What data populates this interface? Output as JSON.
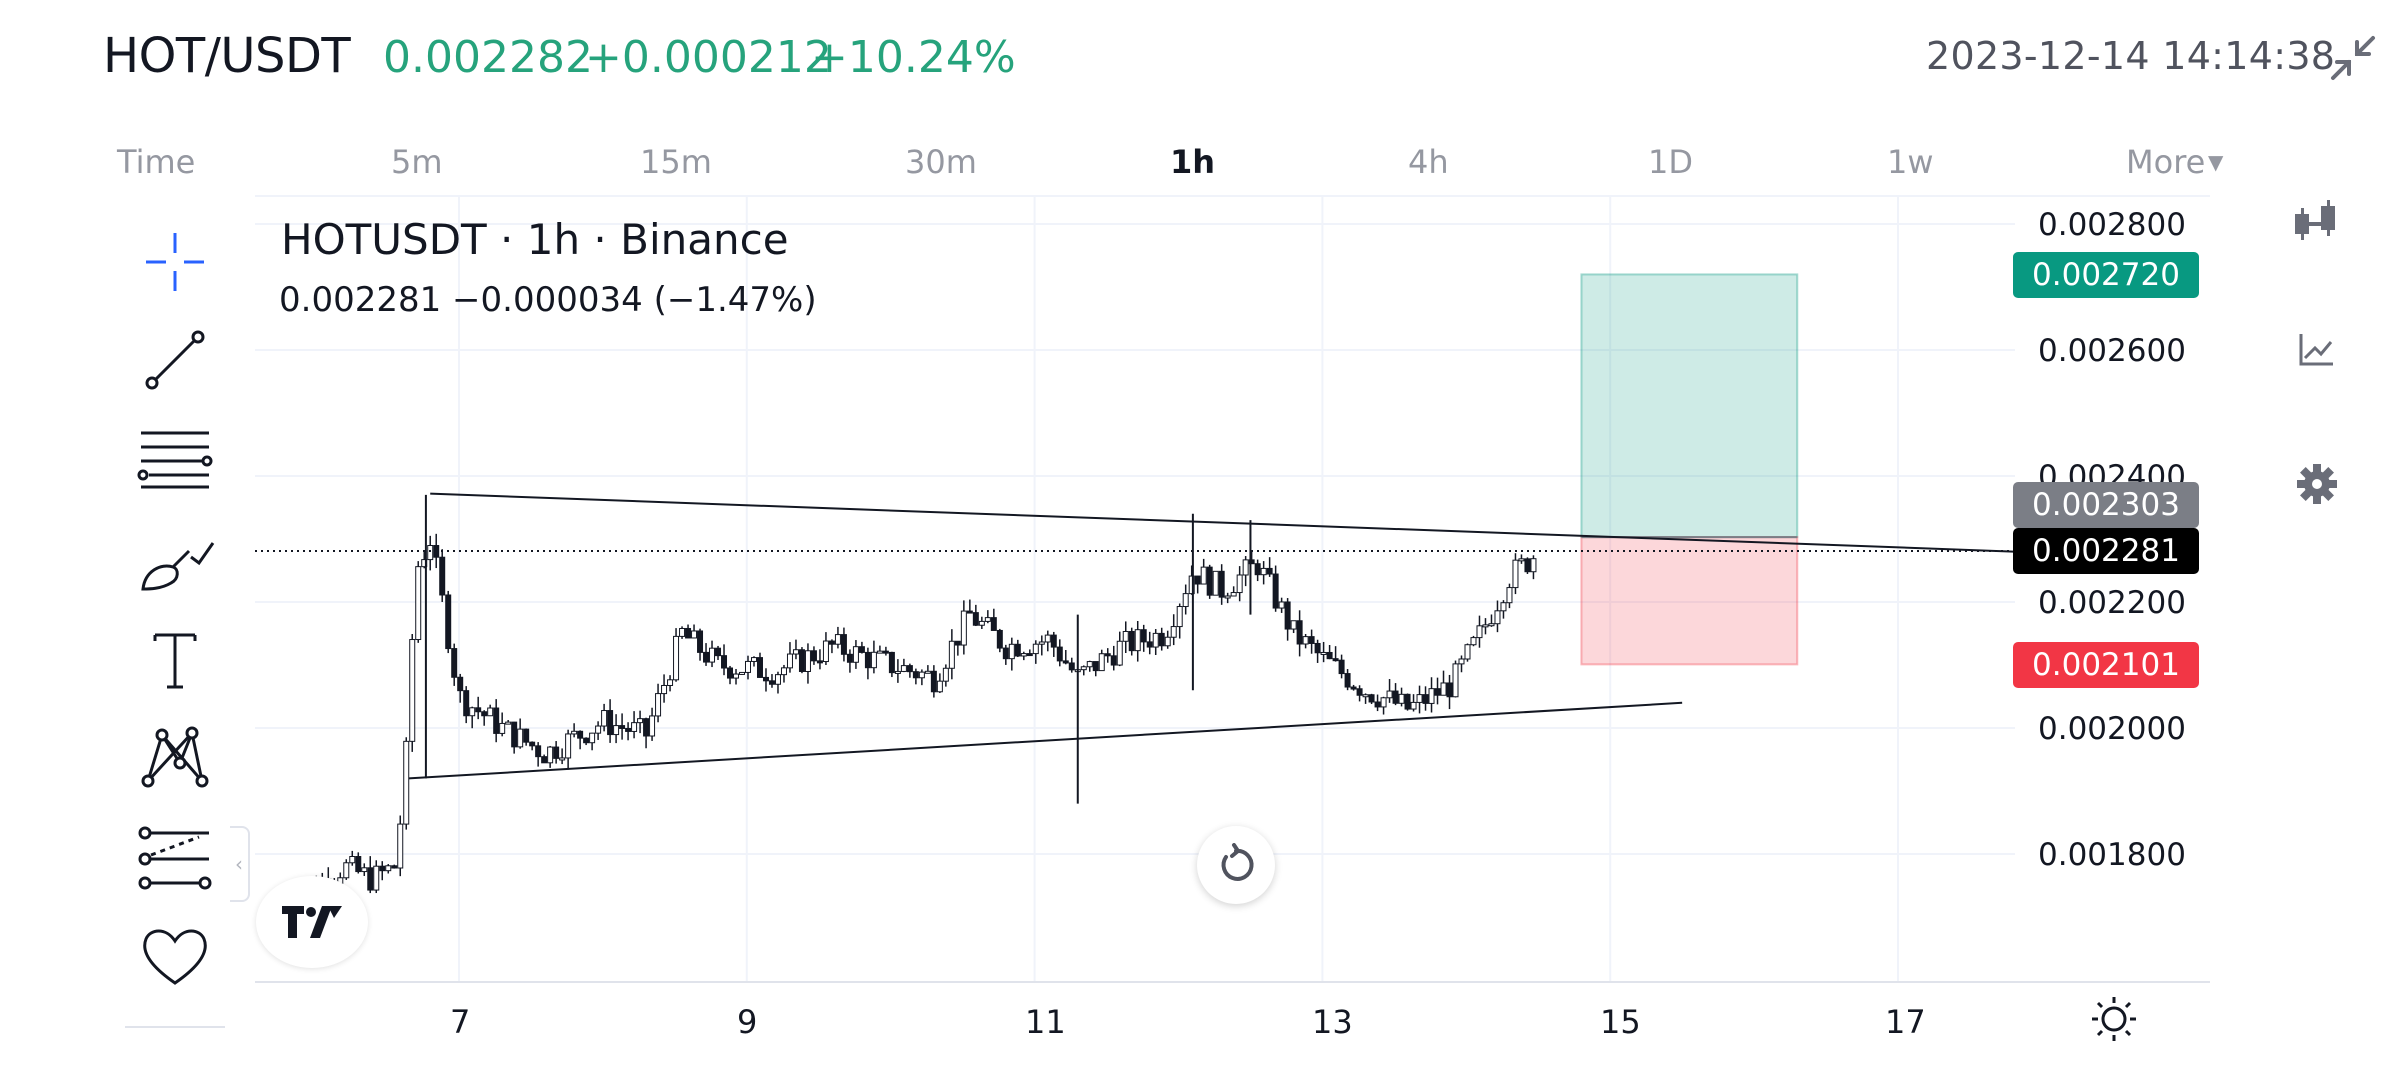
{
  "header": {
    "symbol": "HOT/USDT",
    "price": "0.002282",
    "change": "+0.000212",
    "change_pct": "+10.24%",
    "datetime": "2023-12-14 14:14:38",
    "up_color": "#26a37c"
  },
  "timeframes": {
    "items": [
      {
        "label": "Time",
        "active": false
      },
      {
        "label": "5m",
        "active": false
      },
      {
        "label": "15m",
        "active": false
      },
      {
        "label": "30m",
        "active": false
      },
      {
        "label": "1h",
        "active": true
      },
      {
        "label": "4h",
        "active": false
      },
      {
        "label": "1D",
        "active": false
      },
      {
        "label": "1w",
        "active": false
      }
    ],
    "more_label": "More"
  },
  "toolbar": {
    "tools": [
      "crosshair-icon",
      "trend-line-icon",
      "fib-retracement-icon",
      "brush-icon",
      "text-icon",
      "pattern-icon",
      "forecast-icon",
      "favorites-heart-icon"
    ]
  },
  "legend": {
    "title": "HOTUSDT · 1h · Binance",
    "values": "0.002281  −0.000034 (−1.47%)"
  },
  "axis": {
    "y_ticks": [
      "0.002800",
      "0.002600",
      "0.002400",
      "0.002200",
      "0.002000",
      "0.001800"
    ],
    "x_ticks": [
      "7",
      "9",
      "11",
      "13",
      "15",
      "17"
    ]
  },
  "price_tags": {
    "take_profit": "0.002720",
    "entry": "0.002303",
    "last": "0.002281",
    "stop_loss": "0.002101"
  },
  "chart_data": {
    "type": "candlestick",
    "symbol": "HOTUSDT",
    "interval": "1h",
    "exchange": "Binance",
    "x_unit": "day of December 2023",
    "x_ticks": [
      7,
      9,
      11,
      13,
      15,
      17
    ],
    "ylim": [
      0.00166,
      0.0029
    ],
    "y_ticks": [
      0.0018,
      0.002,
      0.0022,
      0.0024,
      0.0026,
      0.0028
    ],
    "grid": true,
    "last_price": 0.002281,
    "close_series": [
      {
        "x": 5.8,
        "y": 0.00172
      },
      {
        "x": 6.0,
        "y": 0.00175
      },
      {
        "x": 6.2,
        "y": 0.00178
      },
      {
        "x": 6.4,
        "y": 0.00176
      },
      {
        "x": 6.55,
        "y": 0.00178
      },
      {
        "x": 6.62,
        "y": 0.0019
      },
      {
        "x": 6.7,
        "y": 0.00225
      },
      {
        "x": 6.8,
        "y": 0.0023
      },
      {
        "x": 6.9,
        "y": 0.00218
      },
      {
        "x": 7.0,
        "y": 0.00205
      },
      {
        "x": 7.3,
        "y": 0.002
      },
      {
        "x": 7.6,
        "y": 0.00196
      },
      {
        "x": 8.0,
        "y": 0.00201
      },
      {
        "x": 8.3,
        "y": 0.00199
      },
      {
        "x": 8.55,
        "y": 0.00215
      },
      {
        "x": 8.8,
        "y": 0.0021
      },
      {
        "x": 9.2,
        "y": 0.00209
      },
      {
        "x": 9.6,
        "y": 0.00213
      },
      {
        "x": 10.0,
        "y": 0.0021
      },
      {
        "x": 10.3,
        "y": 0.00208
      },
      {
        "x": 10.55,
        "y": 0.00218
      },
      {
        "x": 10.8,
        "y": 0.00213
      },
      {
        "x": 11.1,
        "y": 0.00214
      },
      {
        "x": 11.3,
        "y": 0.00208
      },
      {
        "x": 11.6,
        "y": 0.00213
      },
      {
        "x": 11.9,
        "y": 0.00215
      },
      {
        "x": 12.1,
        "y": 0.00225
      },
      {
        "x": 12.3,
        "y": 0.00222
      },
      {
        "x": 12.55,
        "y": 0.00226
      },
      {
        "x": 12.8,
        "y": 0.00215
      },
      {
        "x": 13.0,
        "y": 0.00211
      },
      {
        "x": 13.3,
        "y": 0.00206
      },
      {
        "x": 13.6,
        "y": 0.00203
      },
      {
        "x": 13.9,
        "y": 0.00207
      },
      {
        "x": 14.1,
        "y": 0.00215
      },
      {
        "x": 14.3,
        "y": 0.00224
      },
      {
        "x": 14.5,
        "y": 0.00228
      }
    ],
    "wicks": [
      {
        "x": 6.77,
        "high": 0.00237,
        "low": 0.00192
      },
      {
        "x": 11.3,
        "high": 0.00218,
        "low": 0.00188
      },
      {
        "x": 12.1,
        "high": 0.00234,
        "low": 0.00206
      },
      {
        "x": 12.5,
        "high": 0.00233,
        "low": 0.00218
      }
    ],
    "trendlines": [
      {
        "x1": 6.8,
        "y1": 0.002372,
        "x2": 17.8,
        "y2": 0.00228
      },
      {
        "x1": 6.65,
        "y1": 0.00192,
        "x2": 15.5,
        "y2": 0.00204
      }
    ],
    "position": {
      "type": "long",
      "x_start": 14.8,
      "x_end": 16.3,
      "take_profit": 0.00272,
      "entry": 0.002303,
      "stop_loss": 0.002101
    }
  }
}
